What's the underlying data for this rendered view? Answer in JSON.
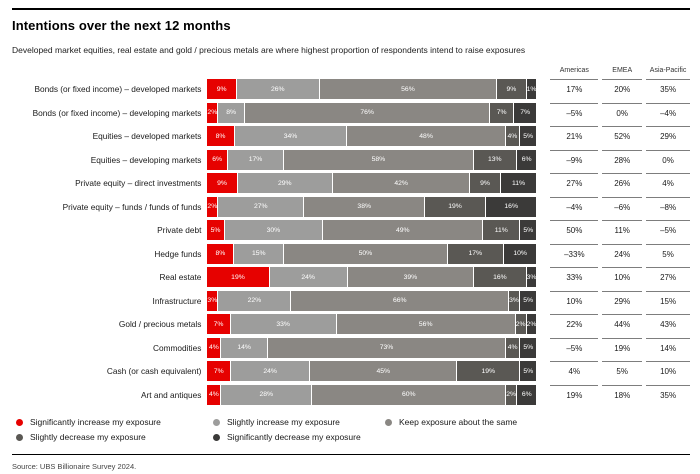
{
  "header": {
    "title": "Intentions over the next 12 months",
    "subtitle": "Developed market equities, real estate and gold / precious metals are where highest proportion of respondents intend to raise exposures"
  },
  "chart_data": {
    "type": "bar",
    "stacked": true,
    "orientation": "horizontal",
    "value_unit": "%",
    "xlim": [
      0,
      100
    ],
    "grid": false,
    "legend_position": "bottom",
    "legend": [
      {
        "label": "Significantly increase my exposure",
        "color": "#e60100"
      },
      {
        "label": "Slightly increase my exposure",
        "color": "#9d9d9c"
      },
      {
        "label": "Keep exposure about the same",
        "color": "#8a8783"
      },
      {
        "label": "Slightly decrease my exposure",
        "color": "#5a5854"
      },
      {
        "label": "Significantly decrease my exposure",
        "color": "#3b3a39"
      }
    ],
    "region_columns": [
      "Americas",
      "EMEA",
      "Asia-Pacific"
    ],
    "rows": [
      {
        "label": "Bonds (or fixed income) – developed markets",
        "values": [
          9,
          26,
          56,
          9,
          1
        ],
        "regions": [
          "17%",
          "20%",
          "35%"
        ]
      },
      {
        "label": "Bonds (or fixed income) – developing markets",
        "values": [
          2,
          8,
          76,
          7,
          7
        ],
        "regions": [
          "–5%",
          "0%",
          "–4%"
        ]
      },
      {
        "label": "Equities – developed markets",
        "values": [
          8,
          34,
          48,
          4,
          5
        ],
        "regions": [
          "21%",
          "52%",
          "29%"
        ]
      },
      {
        "label": "Equities – developing markets",
        "values": [
          6,
          17,
          58,
          13,
          6
        ],
        "regions": [
          "–9%",
          "28%",
          "0%"
        ]
      },
      {
        "label": "Private equity – direct investments",
        "values": [
          9,
          29,
          42,
          9,
          11
        ],
        "regions": [
          "27%",
          "26%",
          "4%"
        ]
      },
      {
        "label": "Private equity – funds / funds of funds",
        "values": [
          2,
          27,
          38,
          19,
          16
        ],
        "regions": [
          "–4%",
          "–6%",
          "–8%"
        ]
      },
      {
        "label": "Private debt",
        "values": [
          5,
          30,
          49,
          11,
          5
        ],
        "regions": [
          "50%",
          "11%",
          "–5%"
        ]
      },
      {
        "label": "Hedge funds",
        "values": [
          8,
          15,
          50,
          17,
          10
        ],
        "regions": [
          "–33%",
          "24%",
          "5%"
        ]
      },
      {
        "label": "Real estate",
        "values": [
          19,
          24,
          39,
          16,
          3
        ],
        "regions": [
          "33%",
          "10%",
          "27%"
        ]
      },
      {
        "label": "Infrastructure",
        "values": [
          3,
          22,
          66,
          3,
          5
        ],
        "regions": [
          "10%",
          "29%",
          "15%"
        ]
      },
      {
        "label": "Gold / precious metals",
        "values": [
          7,
          33,
          56,
          2,
          2
        ],
        "regions": [
          "22%",
          "44%",
          "43%"
        ]
      },
      {
        "label": "Commodities",
        "values": [
          4,
          14,
          73,
          4,
          5
        ],
        "regions": [
          "–5%",
          "19%",
          "14%"
        ]
      },
      {
        "label": "Cash (or cash equivalent)",
        "values": [
          7,
          24,
          45,
          19,
          5
        ],
        "regions": [
          "4%",
          "5%",
          "10%"
        ]
      },
      {
        "label": "Art and antiques",
        "values": [
          4,
          28,
          60,
          2,
          6
        ],
        "regions": [
          "19%",
          "18%",
          "35%"
        ]
      }
    ]
  },
  "footer": {
    "source": "Source: UBS Billionaire Survey 2024."
  }
}
